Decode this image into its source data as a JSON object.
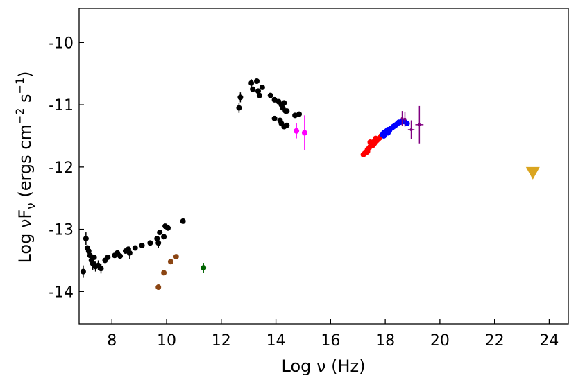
{
  "chart_data": {
    "type": "scatter",
    "title": "",
    "xlabel": "Log ν (Hz)",
    "ylabel_main": "Log νF",
    "ylabel_sub": "ν",
    "ylabel_units": "(ergs cm",
    "ylabel_exp1": "−2",
    "ylabel_mid": " s",
    "ylabel_exp2": "−1",
    "ylabel_close": ")",
    "xlim": [
      6.8,
      24.7
    ],
    "ylim": [
      -14.52,
      -9.45
    ],
    "xticks": [
      8,
      10,
      12,
      14,
      16,
      18,
      20,
      22,
      24
    ],
    "xtick_labels": [
      "8",
      "10",
      "12",
      "14",
      "16",
      "18",
      "20",
      "22",
      "24"
    ],
    "yticks": [
      -10,
      -11,
      -12,
      -13,
      -14
    ],
    "ytick_labels": [
      "-10",
      "-11",
      "-12",
      "-13",
      "-14"
    ],
    "grid": false,
    "series": [
      {
        "name": "black-radio",
        "color": "#000000",
        "points": [
          [
            6.95,
            -13.68
          ],
          [
            7.05,
            -13.15
          ],
          [
            7.1,
            -13.3
          ],
          [
            7.15,
            -13.35
          ],
          [
            7.2,
            -13.42
          ],
          [
            7.25,
            -13.5
          ],
          [
            7.3,
            -13.55
          ],
          [
            7.35,
            -13.45
          ],
          [
            7.4,
            -13.6
          ],
          [
            7.5,
            -13.58
          ],
          [
            7.6,
            -13.63
          ],
          [
            7.75,
            -13.5
          ],
          [
            7.85,
            -13.45
          ],
          [
            8.1,
            -13.42
          ],
          [
            8.2,
            -13.38
          ],
          [
            8.3,
            -13.43
          ],
          [
            8.5,
            -13.35
          ],
          [
            8.6,
            -13.32
          ],
          [
            8.65,
            -13.38
          ],
          [
            8.85,
            -13.3
          ],
          [
            9.1,
            -13.26
          ],
          [
            9.4,
            -13.22
          ],
          [
            9.65,
            -13.15
          ],
          [
            9.7,
            -13.22
          ],
          [
            9.75,
            -13.05
          ],
          [
            9.9,
            -13.12
          ],
          [
            9.95,
            -12.95
          ],
          [
            10.05,
            -12.98
          ],
          [
            10.6,
            -12.87
          ]
        ],
        "errors": [
          0.1,
          0.1,
          0,
          0,
          0.1,
          0,
          0.1,
          0,
          0.08,
          0.08,
          0.08,
          0,
          0,
          0,
          0,
          0,
          0,
          0,
          0.1,
          0,
          0,
          0,
          0,
          0.08,
          0,
          0,
          0,
          0,
          0
        ]
      },
      {
        "name": "black-ir",
        "color": "#000000",
        "points": [
          [
            12.65,
            -11.05
          ],
          [
            12.7,
            -10.88
          ],
          [
            13.1,
            -10.65
          ],
          [
            13.15,
            -10.75
          ],
          [
            13.3,
            -10.62
          ],
          [
            13.35,
            -10.78
          ],
          [
            13.4,
            -10.85
          ],
          [
            13.5,
            -10.72
          ],
          [
            13.8,
            -10.85
          ],
          [
            13.95,
            -10.92
          ],
          [
            14.1,
            -10.95
          ],
          [
            14.2,
            -11.0
          ],
          [
            14.25,
            -11.05
          ],
          [
            14.3,
            -10.97
          ],
          [
            14.35,
            -11.1
          ],
          [
            14.4,
            -11.1
          ],
          [
            14.7,
            -11.17
          ],
          [
            14.85,
            -11.15
          ],
          [
            13.95,
            -11.22
          ],
          [
            14.15,
            -11.25
          ],
          [
            14.2,
            -11.3
          ],
          [
            14.3,
            -11.35
          ],
          [
            14.4,
            -11.33
          ]
        ],
        "errors": [
          0.08,
          0.08,
          0.06,
          0,
          0,
          0,
          0,
          0,
          0,
          0,
          0,
          0,
          0,
          0,
          0,
          0,
          0,
          0,
          0,
          0,
          0,
          0,
          0
        ]
      },
      {
        "name": "magenta-uv",
        "color": "#ff00ff",
        "points": [
          [
            14.75,
            -11.42
          ],
          [
            15.05,
            -11.45
          ]
        ],
        "errors": [
          0.12,
          0.28
        ]
      },
      {
        "name": "brown",
        "color": "#8b4513",
        "points": [
          [
            9.7,
            -13.93
          ],
          [
            9.9,
            -13.7
          ],
          [
            10.15,
            -13.52
          ],
          [
            10.35,
            -13.44
          ]
        ],
        "errors": [
          0,
          0,
          0,
          0
        ]
      },
      {
        "name": "green",
        "color": "#006400",
        "points": [
          [
            11.35,
            -13.62
          ]
        ],
        "errors": [
          0.08
        ]
      },
      {
        "name": "red-xray",
        "color": "#ff0000",
        "points": [
          [
            17.2,
            -11.8
          ],
          [
            17.3,
            -11.77
          ],
          [
            17.35,
            -11.72
          ],
          [
            17.4,
            -11.7
          ],
          [
            17.45,
            -11.67
          ],
          [
            17.5,
            -11.64
          ],
          [
            17.55,
            -11.65
          ],
          [
            17.6,
            -11.62
          ],
          [
            17.65,
            -11.58
          ],
          [
            17.7,
            -11.57
          ],
          [
            17.75,
            -11.55
          ],
          [
            17.8,
            -11.53
          ],
          [
            17.85,
            -11.5
          ],
          [
            17.45,
            -11.6
          ],
          [
            17.55,
            -11.6
          ],
          [
            17.35,
            -11.75
          ],
          [
            17.65,
            -11.54
          ],
          [
            17.25,
            -11.78
          ]
        ],
        "errors": [
          0,
          0,
          0,
          0,
          0,
          0,
          0,
          0,
          0,
          0,
          0,
          0,
          0,
          0,
          0,
          0,
          0,
          0
        ]
      },
      {
        "name": "blue-xray",
        "color": "#0000ff",
        "points": [
          [
            17.9,
            -11.48
          ],
          [
            17.95,
            -11.45
          ],
          [
            18.0,
            -11.44
          ],
          [
            18.05,
            -11.42
          ],
          [
            18.1,
            -11.4
          ],
          [
            18.15,
            -11.42
          ],
          [
            18.2,
            -11.38
          ],
          [
            18.25,
            -11.37
          ],
          [
            18.3,
            -11.35
          ],
          [
            18.35,
            -11.34
          ],
          [
            18.4,
            -11.32
          ],
          [
            18.45,
            -11.3
          ],
          [
            18.5,
            -11.28
          ],
          [
            18.55,
            -11.28
          ],
          [
            18.6,
            -11.27
          ],
          [
            18.7,
            -11.27
          ],
          [
            18.8,
            -11.3
          ],
          [
            17.95,
            -11.5
          ],
          [
            18.1,
            -11.45
          ]
        ],
        "errors": [
          0,
          0,
          0,
          0,
          0,
          0,
          0,
          0,
          0,
          0,
          0,
          0,
          0,
          0,
          0,
          0,
          0,
          0,
          0
        ]
      },
      {
        "name": "purple-hard-xray",
        "color": "#800080",
        "points": [
          [
            18.62,
            -11.22
          ],
          [
            18.72,
            -11.23
          ],
          [
            18.95,
            -11.4
          ],
          [
            19.25,
            -11.32
          ]
        ],
        "errors": [
          0.12,
          0.12,
          0.15,
          0.3
        ],
        "xerrors": [
          0.05,
          0.05,
          0.12,
          0.15
        ]
      },
      {
        "name": "gold-upper-limit",
        "color": "#daa520",
        "marker": "down-triangle",
        "points": [
          [
            23.4,
            -12.1
          ]
        ],
        "errors": [
          0
        ]
      }
    ]
  }
}
